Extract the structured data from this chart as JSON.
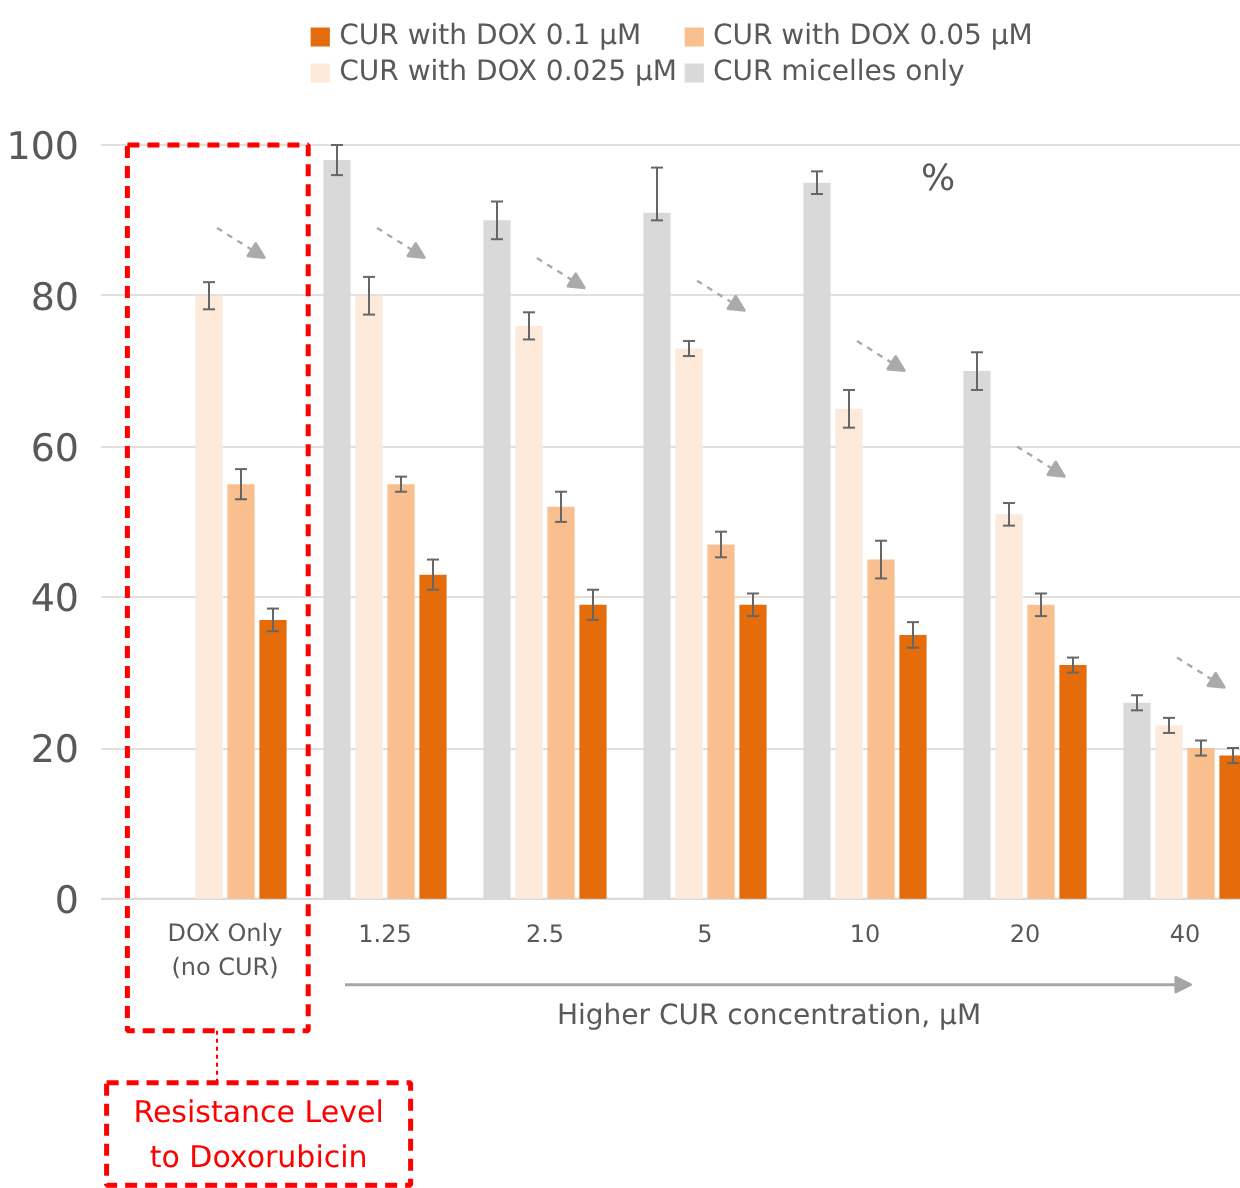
{
  "chart_data": {
    "type": "bar",
    "categories": [
      "DOX Only (no CUR)",
      "1.25",
      "2.5",
      "5",
      "10",
      "20",
      "40"
    ],
    "xlabel": "Higher CUR concentration, μM",
    "ylabel": "%",
    "series": [
      {
        "name": "CUR with DOX 0.1 μM",
        "color": "#e46c0a",
        "values": [
          37,
          43,
          39,
          39,
          35,
          31,
          19
        ],
        "errors": [
          1.5,
          2,
          2,
          1.5,
          1.7,
          1,
          1
        ]
      },
      {
        "name": "CUR with DOX 0.05 μM",
        "color": "#f9bf8f",
        "values": [
          55,
          55,
          52,
          47,
          45,
          39,
          20
        ],
        "errors": [
          2,
          1,
          2,
          1.7,
          2.5,
          1.5,
          1
        ]
      },
      {
        "name": "CUR with DOX 0.025 μM",
        "color": "#fde9d9",
        "values": [
          80,
          80,
          76,
          73,
          65,
          51,
          23
        ],
        "errors": [
          1.8,
          2.5,
          1.8,
          1,
          2.5,
          1.5,
          1
        ]
      },
      {
        "name": "CUR micelles only",
        "color": "#d9d9d9",
        "values": [
          null,
          98,
          90,
          91,
          95,
          70,
          26
        ],
        "errors": [
          null,
          2,
          2.5,
          [
            90,
            97
          ],
          1.5,
          2.5,
          1
        ]
      }
    ],
    "ylim": [
      0,
      100
    ],
    "yticks": [
      0,
      20,
      40,
      60,
      80,
      100
    ],
    "grid": "y",
    "legend": "top",
    "annotations": [
      "Resistance Level to Doxorubicin"
    ]
  }
}
